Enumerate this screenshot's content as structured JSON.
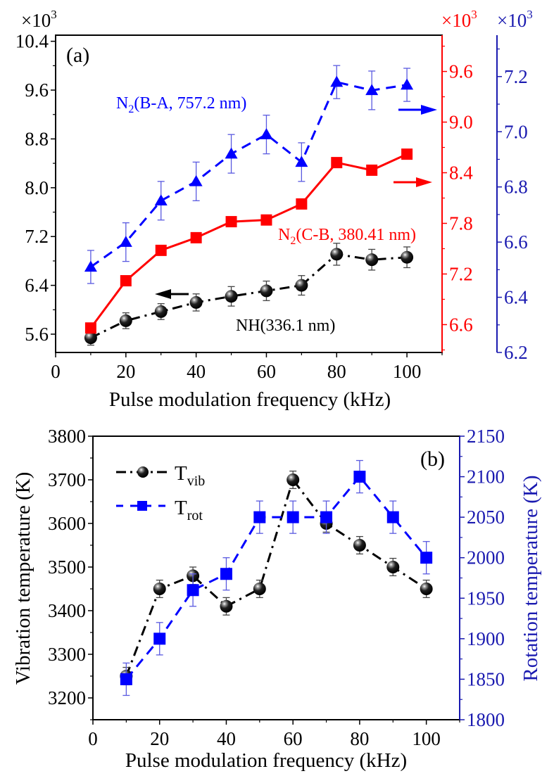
{
  "colors": {
    "black": "#000000",
    "red": "#ff0000",
    "blue": "#0000ff",
    "blue_axis": "#1a1ab0",
    "errbar_blue": "#5a5ae0",
    "errbar_black": "#444444"
  },
  "chart_data": [
    {
      "id": "a",
      "type": "line",
      "panel_label": "(a)",
      "title": "",
      "xlabel": "Pulse modulation frequency (kHz)",
      "xlim": [
        0,
        110
      ],
      "xticks": [
        0,
        20,
        40,
        60,
        80,
        100
      ],
      "x": [
        10,
        20,
        30,
        40,
        50,
        60,
        70,
        80,
        90,
        100
      ],
      "grid": false,
      "axes": [
        {
          "id": "left",
          "color": "black",
          "multiplier": "×10",
          "multiplier_exp": "3",
          "ylim": [
            5.3,
            10.5
          ],
          "ticks": [
            "10.4",
            "9.6",
            "8.8",
            "8.0",
            "7.2",
            "6.4",
            "5.6"
          ],
          "tick_values": [
            10.4,
            9.6,
            8.8,
            8.0,
            7.2,
            6.4,
            5.6
          ]
        },
        {
          "id": "red",
          "color": "red",
          "multiplier": "×10",
          "multiplier_exp": "3",
          "ylim": [
            6.27,
            10.03
          ],
          "ticks": [
            "9.6",
            "9.0",
            "8.4",
            "7.8",
            "7.2",
            "6.6"
          ],
          "tick_values": [
            9.6,
            9.0,
            8.4,
            7.8,
            7.2,
            6.6
          ]
        },
        {
          "id": "blue",
          "color": "blue",
          "multiplier": "×10",
          "multiplier_exp": "3",
          "ylim": [
            6.2,
            7.35
          ],
          "ticks": [
            "7.2",
            "7.0",
            "6.8",
            "6.6",
            "6.4",
            "6.2"
          ],
          "tick_values": [
            7.2,
            7.0,
            6.8,
            6.6,
            6.4,
            6.2
          ]
        }
      ],
      "series": [
        {
          "name": "NH(336.1 nm)",
          "label": "NH(336.1 nm)",
          "axis": "left",
          "color": "black",
          "marker": "sphere",
          "line": "dash-dot",
          "values": [
            5.54,
            5.82,
            5.97,
            6.12,
            6.22,
            6.31,
            6.4,
            6.91,
            6.82,
            6.86
          ],
          "errors": [
            0.12,
            0.13,
            0.13,
            0.14,
            0.16,
            0.16,
            0.16,
            0.18,
            0.17,
            0.17
          ]
        },
        {
          "name": "N2(C-B, 380.41 nm)",
          "label_main": "N",
          "label_sub": "2",
          "label_rest": "(C-B, 380.41 nm)",
          "axis": "red",
          "color": "red",
          "marker": "square",
          "line": "solid",
          "values": [
            6.56,
            7.12,
            7.48,
            7.63,
            7.82,
            7.84,
            8.03,
            8.52,
            8.43,
            8.62
          ],
          "errors": [
            0.03,
            0.03,
            0.04,
            0.04,
            0.04,
            0.04,
            0.04,
            0.05,
            0.04,
            0.05
          ]
        },
        {
          "name": "N2(B-A, 757.2 nm)",
          "label_main": "N",
          "label_sub": "2",
          "label_rest": "(B-A, 757.2 nm)",
          "axis": "blue",
          "color": "blue",
          "marker": "triangle",
          "line": "dash",
          "values": [
            6.51,
            6.6,
            6.75,
            6.82,
            6.92,
            6.99,
            6.89,
            7.18,
            7.15,
            7.17
          ],
          "errors": [
            0.06,
            0.07,
            0.07,
            0.07,
            0.07,
            0.07,
            0.07,
            0.06,
            0.07,
            0.06
          ]
        }
      ],
      "arrows": [
        {
          "series": "NH(336.1 nm)",
          "direction": "left"
        },
        {
          "series": "N2(C-B, 380.41 nm)",
          "direction": "right"
        },
        {
          "series": "N2(B-A, 757.2 nm)",
          "direction": "right"
        }
      ]
    },
    {
      "id": "b",
      "type": "line",
      "panel_label": "(b)",
      "title": "",
      "xlabel": "Pulse modulation frequency (kHz)",
      "ylabel_left": "Vibration temperature (K)",
      "ylabel_right": "Rotation temperature (K)",
      "xlim": [
        0,
        110
      ],
      "xticks": [
        0,
        20,
        40,
        60,
        80,
        100
      ],
      "x": [
        10,
        20,
        30,
        40,
        50,
        60,
        70,
        80,
        90,
        100
      ],
      "grid": false,
      "legend_position": "top-left",
      "axes": [
        {
          "id": "left",
          "color": "black",
          "ylim": [
            3150,
            3800
          ],
          "ticks": [
            "3800",
            "3700",
            "3600",
            "3500",
            "3400",
            "3300",
            "3200"
          ],
          "tick_values": [
            3800,
            3700,
            3600,
            3500,
            3400,
            3300,
            3200
          ]
        },
        {
          "id": "right",
          "color": "blue",
          "ylim": [
            1800,
            2150
          ],
          "ticks": [
            "2150",
            "2100",
            "2050",
            "2000",
            "1950",
            "1900",
            "1850",
            "1800"
          ],
          "tick_values": [
            2150,
            2100,
            2050,
            2000,
            1950,
            1900,
            1850,
            1800
          ]
        }
      ],
      "series": [
        {
          "name": "T_vib",
          "legend_main": "T",
          "legend_sub": "vib",
          "axis": "left",
          "color": "black",
          "marker": "sphere",
          "line": "dash-dot",
          "values": [
            3250,
            3450,
            3480,
            3410,
            3450,
            3700,
            3600,
            3550,
            3500,
            3450
          ],
          "errors": [
            20,
            20,
            20,
            20,
            20,
            20,
            20,
            20,
            20,
            20
          ]
        },
        {
          "name": "T_rot",
          "legend_main": "T",
          "legend_sub": "rot",
          "axis": "right",
          "color": "blue",
          "marker": "square",
          "line": "dash",
          "values": [
            1850,
            1900,
            1960,
            1980,
            2050,
            2050,
            2050,
            2100,
            2050,
            2000
          ],
          "errors": [
            20,
            20,
            20,
            20,
            20,
            20,
            20,
            20,
            20,
            20
          ]
        }
      ]
    }
  ]
}
